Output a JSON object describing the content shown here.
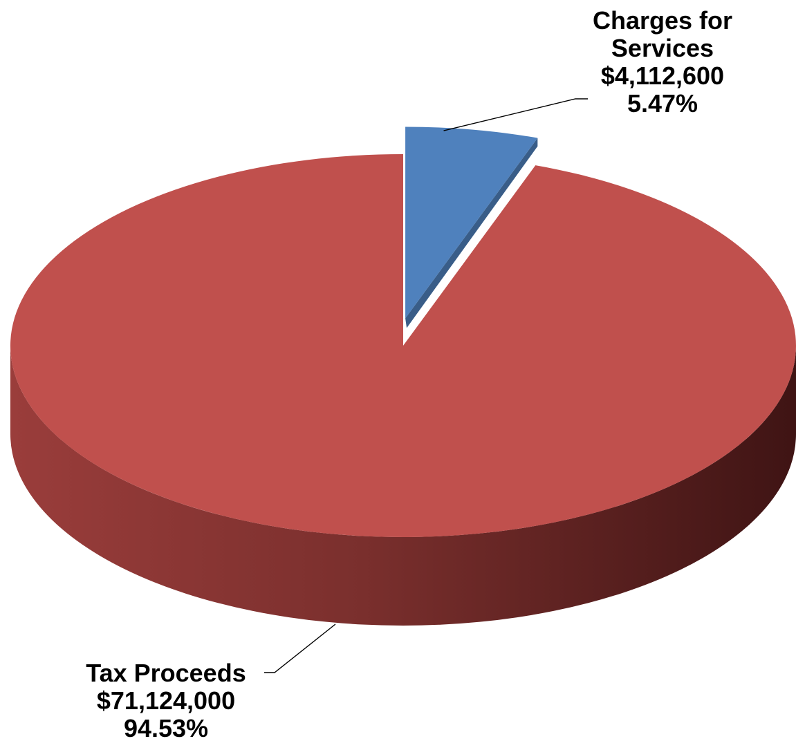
{
  "chart_data": {
    "type": "pie",
    "style": "3d-exploded",
    "currency": "USD",
    "slices": [
      {
        "label_lines": [
          "Tax Proceeds"
        ],
        "value": 71124000,
        "value_label": "$71,124,000",
        "percent": 94.53,
        "percent_label": "94.53%",
        "color": "#c0504d",
        "exploded": false
      },
      {
        "label_lines": [
          "Charges for",
          "Services"
        ],
        "value": 4112600,
        "value_label": "$4,112,600",
        "percent": 5.47,
        "percent_label": "5.47%",
        "color": "#4f81bd",
        "exploded": true
      }
    ]
  }
}
